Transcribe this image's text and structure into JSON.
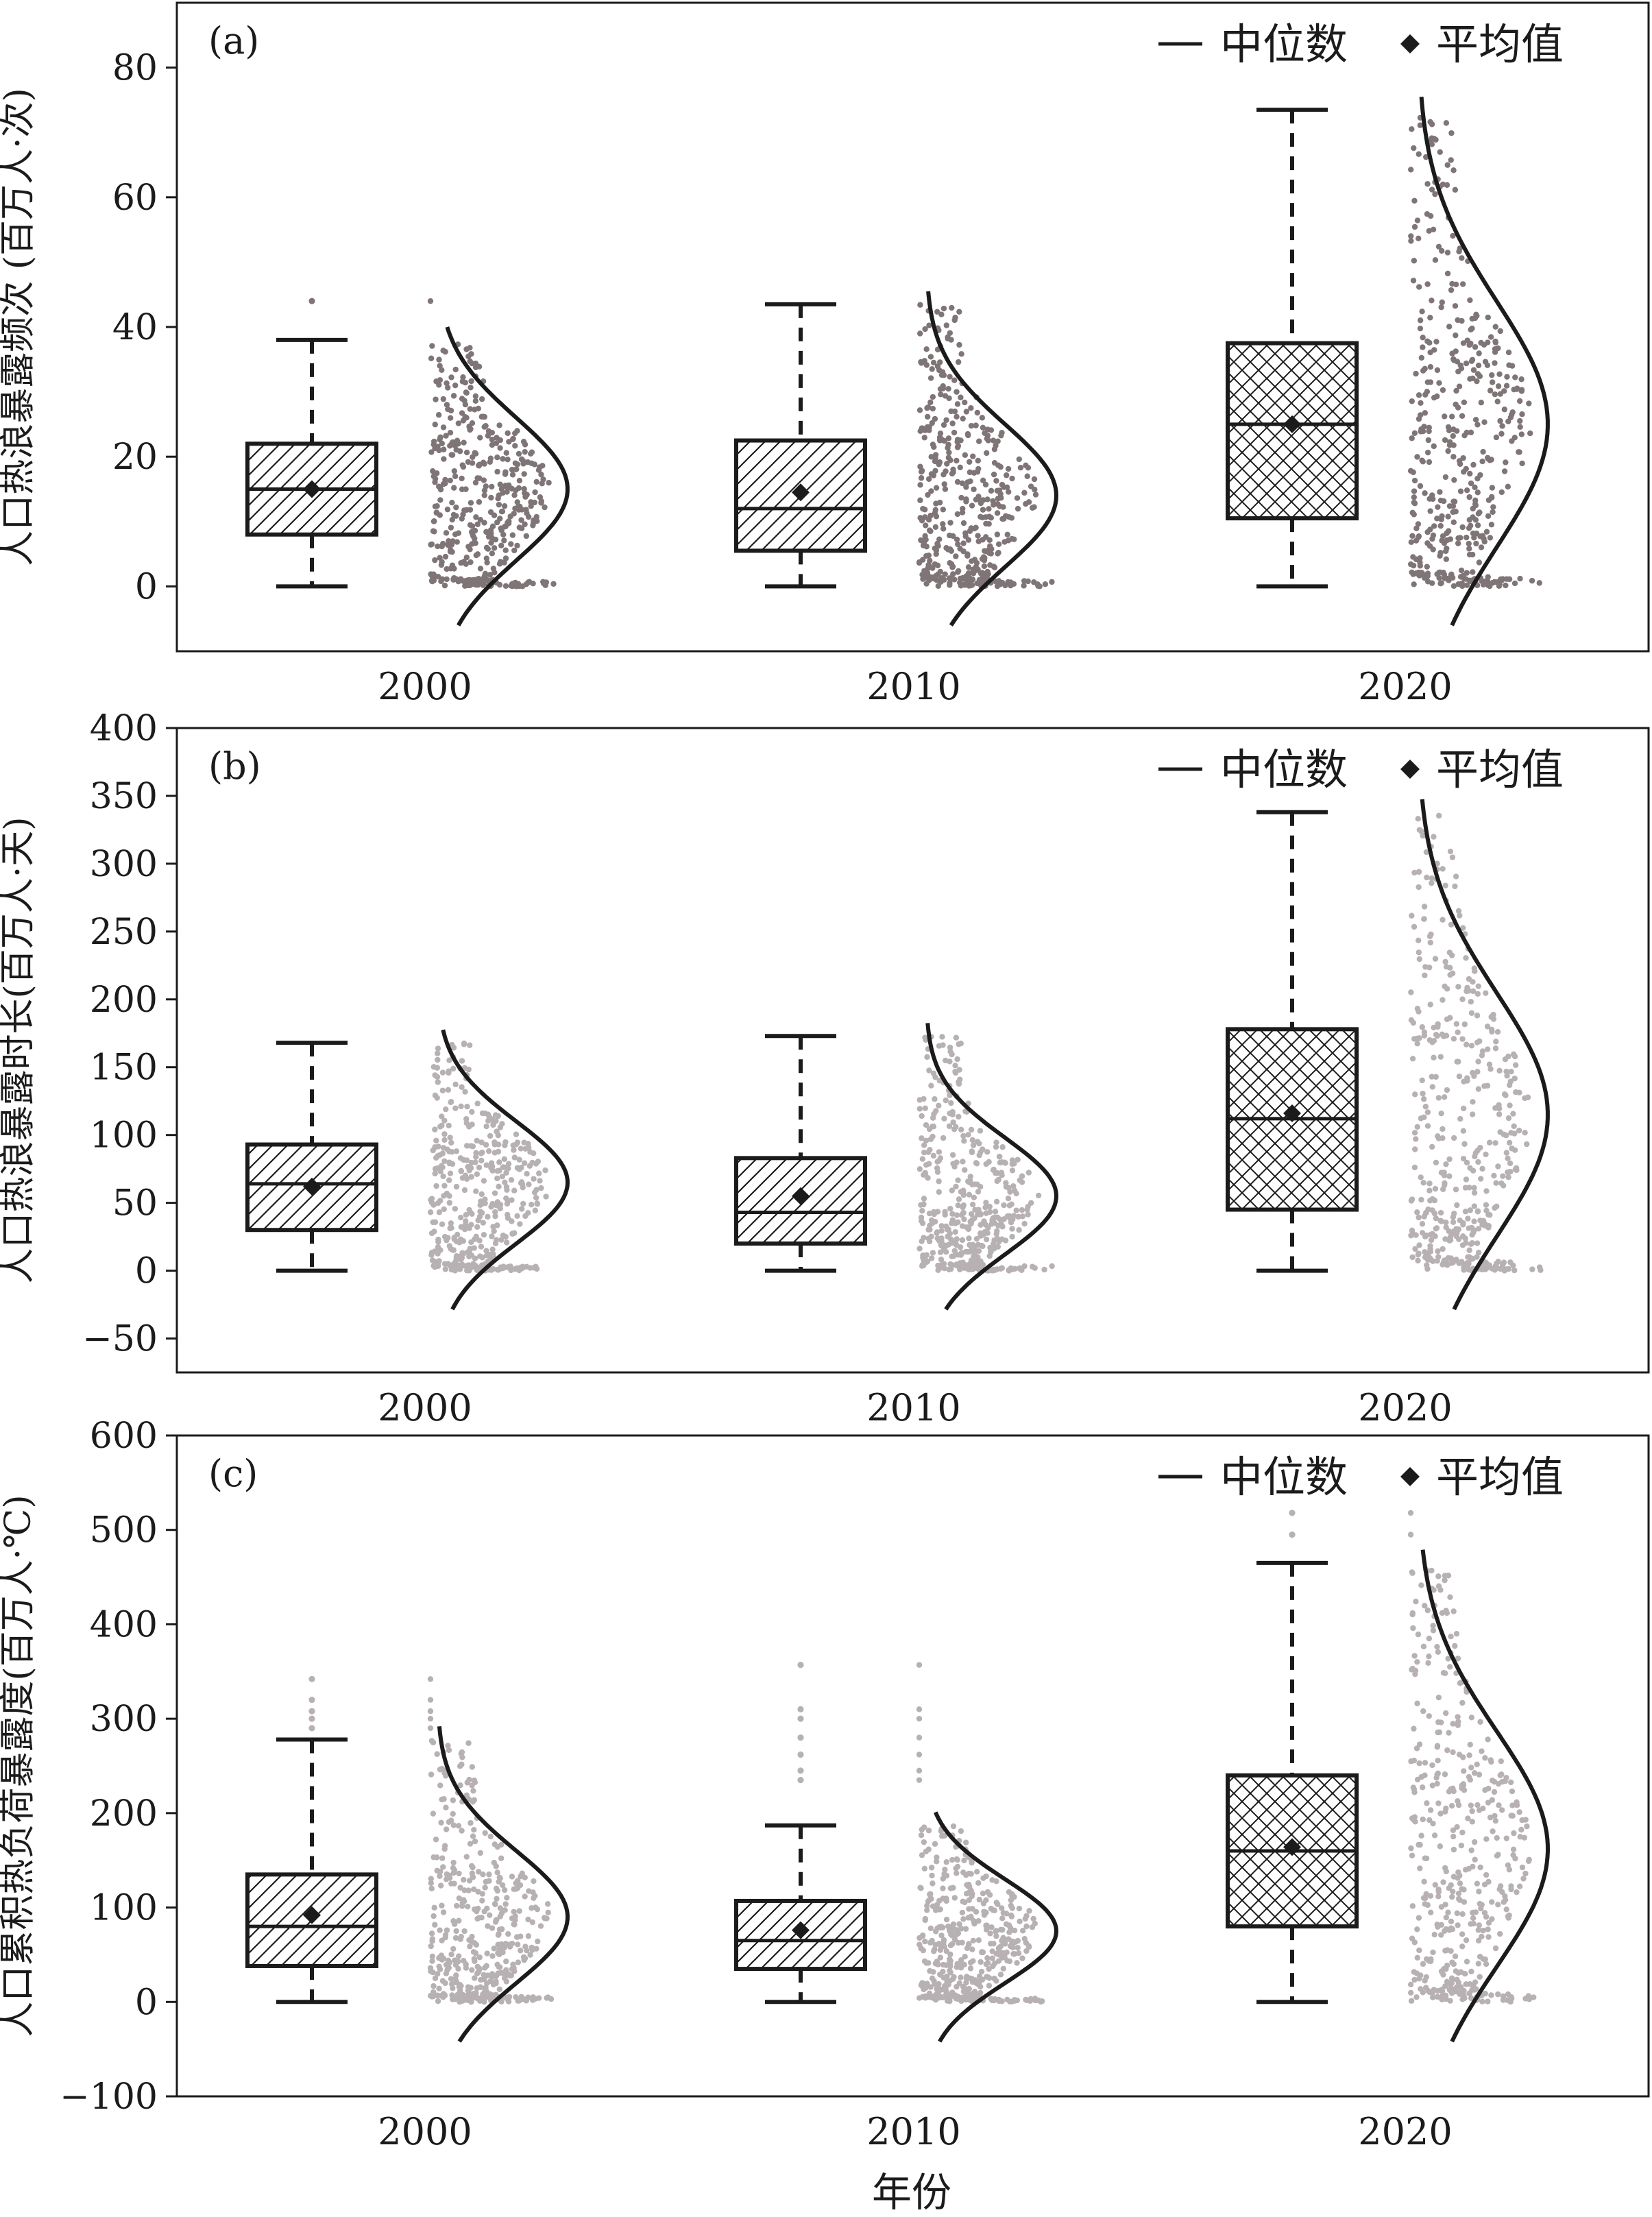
{
  "figure": {
    "xlabel": "年份"
  },
  "legend": {
    "median_label": "中位数",
    "mean_label": "平均值"
  },
  "chart_data": [
    {
      "type": "box",
      "panel_label": "(a)",
      "ylabel": "人口热浪暴露频次 (百万人·次)",
      "categories": [
        "2000",
        "2010",
        "2020"
      ],
      "ylim": [
        -10,
        90
      ],
      "yticks": [
        0,
        20,
        40,
        60,
        80
      ],
      "legend_position": "top-right",
      "point_color": "#7f7577",
      "box_pattern": [
        "diagonal",
        "diagonal",
        "crosshatch"
      ],
      "boxes": [
        {
          "category": "2000",
          "min": 0,
          "q1": 8,
          "median": 15,
          "q3": 22,
          "max": 38,
          "mean": 15,
          "outliers": [
            44
          ],
          "density_peak": 15,
          "density_sd": 11
        },
        {
          "category": "2010",
          "min": 0,
          "q1": 5.5,
          "median": 12,
          "q3": 22.5,
          "max": 43.5,
          "mean": 14.5,
          "outliers": [],
          "density_peak": 14,
          "density_sd": 11
        },
        {
          "category": "2020",
          "min": 0,
          "q1": 10.5,
          "median": 25,
          "q3": 37.5,
          "max": 73.5,
          "mean": 25,
          "outliers": [],
          "density_peak": 25,
          "density_sd": 19
        }
      ]
    },
    {
      "type": "box",
      "panel_label": "(b)",
      "ylabel": "人口热浪暴露时长(百万人·天)",
      "categories": [
        "2000",
        "2010",
        "2020"
      ],
      "ylim": [
        -75,
        400
      ],
      "yticks": [
        -50,
        0,
        50,
        100,
        150,
        200,
        250,
        300,
        350,
        400
      ],
      "legend_position": "top-right",
      "point_color": "#b7b1b3",
      "box_pattern": [
        "diagonal",
        "diagonal",
        "crosshatch"
      ],
      "boxes": [
        {
          "category": "2000",
          "min": 0,
          "q1": 30,
          "median": 64,
          "q3": 93,
          "max": 168,
          "mean": 62,
          "outliers": [],
          "density_peak": 65,
          "density_sd": 45
        },
        {
          "category": "2010",
          "min": 0,
          "q1": 20,
          "median": 43,
          "q3": 83,
          "max": 173,
          "mean": 55,
          "outliers": [],
          "density_peak": 55,
          "density_sd": 43
        },
        {
          "category": "2020",
          "min": 0,
          "q1": 45,
          "median": 112,
          "q3": 178,
          "max": 338,
          "mean": 116,
          "outliers": [],
          "density_peak": 115,
          "density_sd": 90
        }
      ]
    },
    {
      "type": "box",
      "panel_label": "(c)",
      "ylabel": "人口累积热负荷暴露度(百万人·℃)",
      "categories": [
        "2000",
        "2010",
        "2020"
      ],
      "ylim": [
        -100,
        600
      ],
      "yticks": [
        -100,
        0,
        100,
        200,
        300,
        400,
        500,
        600
      ],
      "legend_position": "top-right",
      "point_color": "#b7b1b3",
      "box_pattern": [
        "diagonal",
        "diagonal",
        "crosshatch"
      ],
      "boxes": [
        {
          "category": "2000",
          "min": 0,
          "q1": 38,
          "median": 80,
          "q3": 135,
          "max": 278,
          "mean": 92,
          "outliers": [
            290,
            300,
            308,
            320,
            342
          ],
          "density_peak": 90,
          "density_sd": 70
        },
        {
          "category": "2010",
          "min": 0,
          "q1": 35,
          "median": 65,
          "q3": 107,
          "max": 187,
          "mean": 76,
          "outliers": [
            235,
            245,
            262,
            280,
            300,
            310,
            357
          ],
          "density_peak": 75,
          "density_sd": 55
        },
        {
          "category": "2020",
          "min": 0,
          "q1": 80,
          "median": 160,
          "q3": 240,
          "max": 465,
          "mean": 164,
          "outliers": [
            495,
            518
          ],
          "density_peak": 162,
          "density_sd": 125
        }
      ]
    }
  ]
}
